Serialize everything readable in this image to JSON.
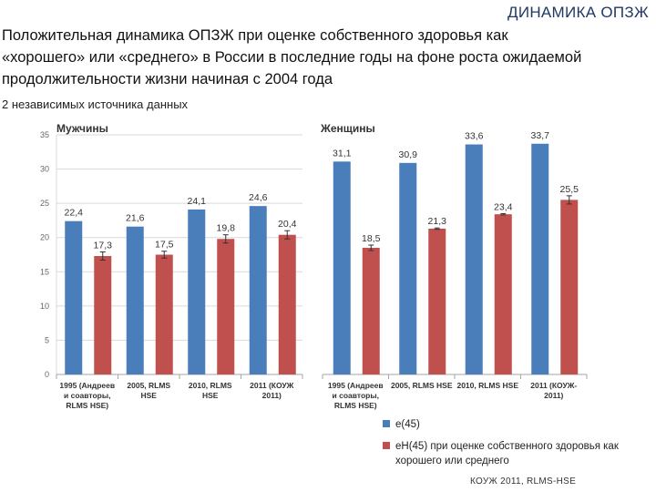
{
  "slide": {
    "corner_title": "ДИНАМИКА ОПЗЖ",
    "headline": "Положительная динамика ОПЗЖ при оценке собственного здоровья как «хорошего» или «среднего» в России в последние годы на фоне роста ожидаемой продолжительности жизни начиная с 2004 года",
    "subheadline": "2 независимых источника данных",
    "source": "КОУЖ 2011, RLMS-HSE"
  },
  "legend": {
    "e45": "e(45)",
    "eh45": "eH(45) при оценке собственного здоровья как хорошего или среднего"
  },
  "colors": {
    "e45": "#4a7ebb",
    "eh45": "#c0504d",
    "grid": "#d9d9d9",
    "axis": "#595959"
  },
  "chart_data": [
    {
      "type": "bar",
      "title": "Мужчины",
      "categories": [
        "1995 (Андреев и соавторы, RLMS HSE)",
        "2005, RLMS HSE",
        "2010, RLMS HSE",
        "2011 (КОУЖ 2011)"
      ],
      "category_lines": [
        [
          "1995 (Андреев",
          "и соавторы,",
          "RLMS HSE)"
        ],
        [
          "2005, RLMS",
          "HSE"
        ],
        [
          "2010, RLMS",
          "HSE"
        ],
        [
          "2011 (КОУЖ",
          "2011)"
        ]
      ],
      "series": [
        {
          "name": "e(45)",
          "values": [
            22.4,
            21.6,
            24.1,
            24.6
          ],
          "labels": [
            "22,4",
            "21,6",
            "24,1",
            "24,6"
          ]
        },
        {
          "name": "eH(45)",
          "values": [
            17.3,
            17.5,
            19.8,
            20.4
          ],
          "labels": [
            "17,3",
            "17,5",
            "19,8",
            "20,4"
          ],
          "errors": [
            0.6,
            0.5,
            0.6,
            0.6
          ]
        }
      ],
      "ylim": [
        0,
        35
      ],
      "yticks": [
        0,
        5,
        10,
        15,
        20,
        25,
        30,
        35
      ],
      "grid": true
    },
    {
      "type": "bar",
      "title": "Женщины",
      "categories": [
        "1995 (Андреев и соавторы, RLMS HSE)",
        "2005, RLMS HSE",
        "2010, RLMS HSE",
        "2011 (КОУЖ 2011)"
      ],
      "category_lines": [
        [
          "1995 (Андреев",
          "и соавторы,",
          "RLMS HSE)"
        ],
        [
          "2005, RLMS HSE"
        ],
        [
          "2010, RLMS HSE"
        ],
        [
          "2011 (КОУЖ-",
          "2011)"
        ]
      ],
      "series": [
        {
          "name": "e(45)",
          "values": [
            31.1,
            30.9,
            33.6,
            33.7
          ],
          "labels": [
            "31,1",
            "30,9",
            "33,6",
            "33,7"
          ]
        },
        {
          "name": "eH(45)",
          "values": [
            18.5,
            21.3,
            23.4,
            25.5
          ],
          "labels": [
            "18,5",
            "21,3",
            "23,4",
            "25,5"
          ],
          "errors": [
            0.4,
            0.1,
            0.1,
            0.6
          ]
        }
      ],
      "ylim": [
        0,
        35
      ],
      "yticks": [],
      "grid": false
    }
  ]
}
